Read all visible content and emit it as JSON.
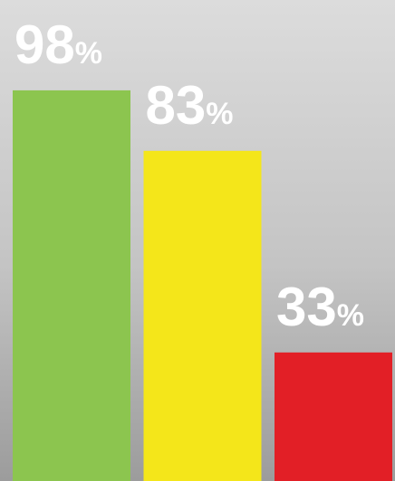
{
  "chart_data": {
    "type": "bar",
    "categories": [
      null,
      null,
      null
    ],
    "values": [
      98,
      83,
      33
    ],
    "value_labels": [
      "98%",
      "83%",
      "33%"
    ],
    "colors": [
      "#8cc54f",
      "#f4e61a",
      "#e21f26"
    ]
  }
}
